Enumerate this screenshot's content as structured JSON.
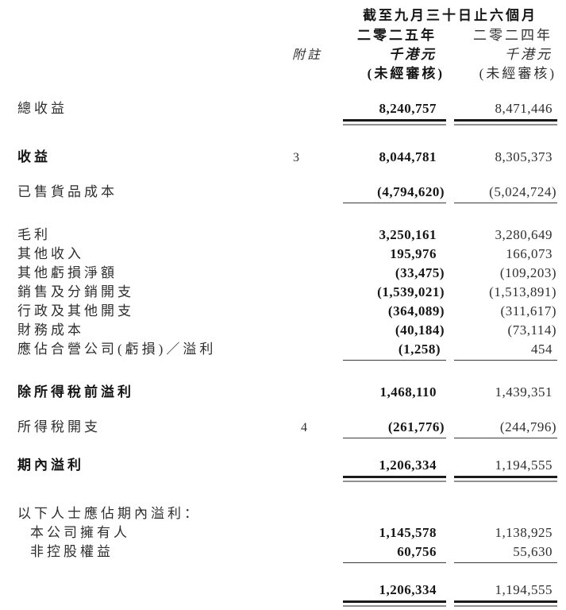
{
  "colors": {
    "page_background": "#ffffff",
    "text_regular": "#2e2e2e",
    "text_bold": "#151515",
    "rule_dark": "#1a1a1a",
    "rule_gray": "#8f8f8f"
  },
  "header": {
    "period_title": "截至九月三十日止六個月",
    "note_label": "附註",
    "col_2025": {
      "year": "二零二五年",
      "unit": "千港元",
      "audit_status": "(未經審核)"
    },
    "col_2024": {
      "year": "二零二四年",
      "unit": "千港元",
      "audit_status": "(未經審核)"
    }
  },
  "table": {
    "rows": [
      {
        "label": "總收益",
        "note": "",
        "v2025": "8,240,757",
        "v2024": "8,471,446",
        "bold": false,
        "indent": false,
        "rule": "double",
        "gap": "md"
      },
      {
        "label": "收益",
        "note": "3",
        "v2025": "8,044,781",
        "v2024": "8,305,373",
        "bold": true,
        "indent": false,
        "rule": null,
        "gap": "lg"
      },
      {
        "label": "已售貨品成本",
        "note": "",
        "v2025": "(4,794,620)",
        "v2024": "(5,024,724)",
        "bold": false,
        "indent": false,
        "rule": "single",
        "gap": "md"
      },
      {
        "label": "毛利",
        "note": "",
        "v2025": "3,250,161",
        "v2024": "3,280,649",
        "bold": false,
        "indent": false,
        "rule": null,
        "gap": "lg"
      },
      {
        "label": "其他收入",
        "note": "",
        "v2025": "195,976",
        "v2024": "166,073",
        "bold": false,
        "indent": false,
        "rule": null,
        "gap": null
      },
      {
        "label": "其他虧損淨額",
        "note": "",
        "v2025": "(33,475)",
        "v2024": "(109,203)",
        "bold": false,
        "indent": false,
        "rule": null,
        "gap": null
      },
      {
        "label": "銷售及分銷開支",
        "note": "",
        "v2025": "(1,539,021)",
        "v2024": "(1,513,891)",
        "bold": false,
        "indent": false,
        "rule": null,
        "gap": null
      },
      {
        "label": "行政及其他開支",
        "note": "",
        "v2025": "(364,089)",
        "v2024": "(311,617)",
        "bold": false,
        "indent": false,
        "rule": null,
        "gap": null
      },
      {
        "label": "財務成本",
        "note": "",
        "v2025": "(40,184)",
        "v2024": "(73,114)",
        "bold": false,
        "indent": false,
        "rule": null,
        "gap": null
      },
      {
        "label": "應佔合營公司(虧損)／溢利",
        "note": "",
        "v2025": "(1,258)",
        "v2024": "454",
        "bold": false,
        "indent": false,
        "rule": "single",
        "gap": null
      },
      {
        "label": "除所得稅前溢利",
        "note": "",
        "v2025": "1,468,110",
        "v2024": "1,439,351",
        "bold": true,
        "indent": false,
        "rule": null,
        "gap": "lg"
      },
      {
        "label": "所得稅開支",
        "note": "4",
        "v2025": "(261,776)",
        "v2024": "(244,796)",
        "bold": false,
        "indent": false,
        "rule": "single",
        "gap": "md"
      },
      {
        "label": "期內溢利",
        "note": "",
        "v2025": "1,206,334",
        "v2024": "1,194,555",
        "bold": true,
        "indent": false,
        "rule": "double",
        "gap": "md"
      },
      {
        "label": "以下人士應佔期內溢利：",
        "note": "",
        "v2025": "",
        "v2024": "",
        "bold": false,
        "indent": false,
        "rule": null,
        "gap": "lg"
      },
      {
        "label": "本公司擁有人",
        "note": "",
        "v2025": "1,145,578",
        "v2024": "1,138,925",
        "bold": false,
        "indent": true,
        "rule": null,
        "gap": null
      },
      {
        "label": "非控股權益",
        "note": "",
        "v2025": "60,756",
        "v2024": "55,630",
        "bold": false,
        "indent": true,
        "rule": "single",
        "gap": null
      },
      {
        "label": "",
        "note": "",
        "v2025": "1,206,334",
        "v2024": "1,194,555",
        "bold": false,
        "indent": false,
        "rule": "double",
        "gap": "md"
      }
    ]
  }
}
